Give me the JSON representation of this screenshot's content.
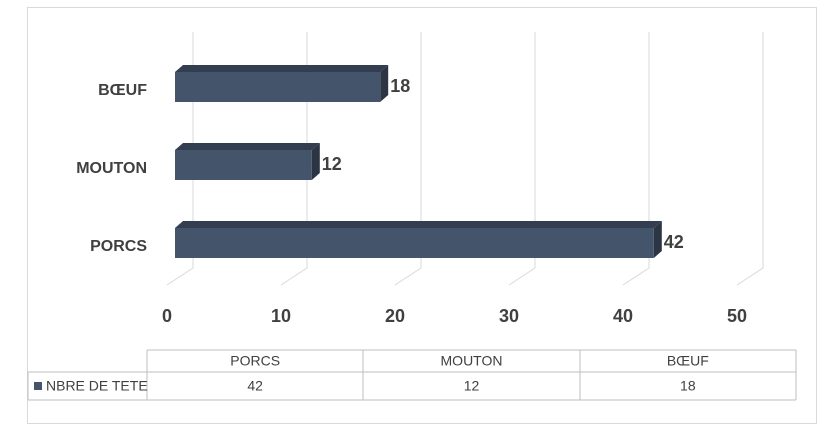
{
  "chart_data": {
    "type": "bar3d_horizontal",
    "categories": [
      "PORCS",
      "MOUTON",
      "BŒUF"
    ],
    "series": [
      {
        "name": "NBRE DE TETE",
        "color": "#44546a",
        "values": [
          42,
          12,
          18
        ]
      }
    ],
    "xlim": [
      0,
      50
    ],
    "xticks": [
      0,
      10,
      20,
      30,
      40,
      50
    ],
    "grid": true,
    "data_table": true
  }
}
